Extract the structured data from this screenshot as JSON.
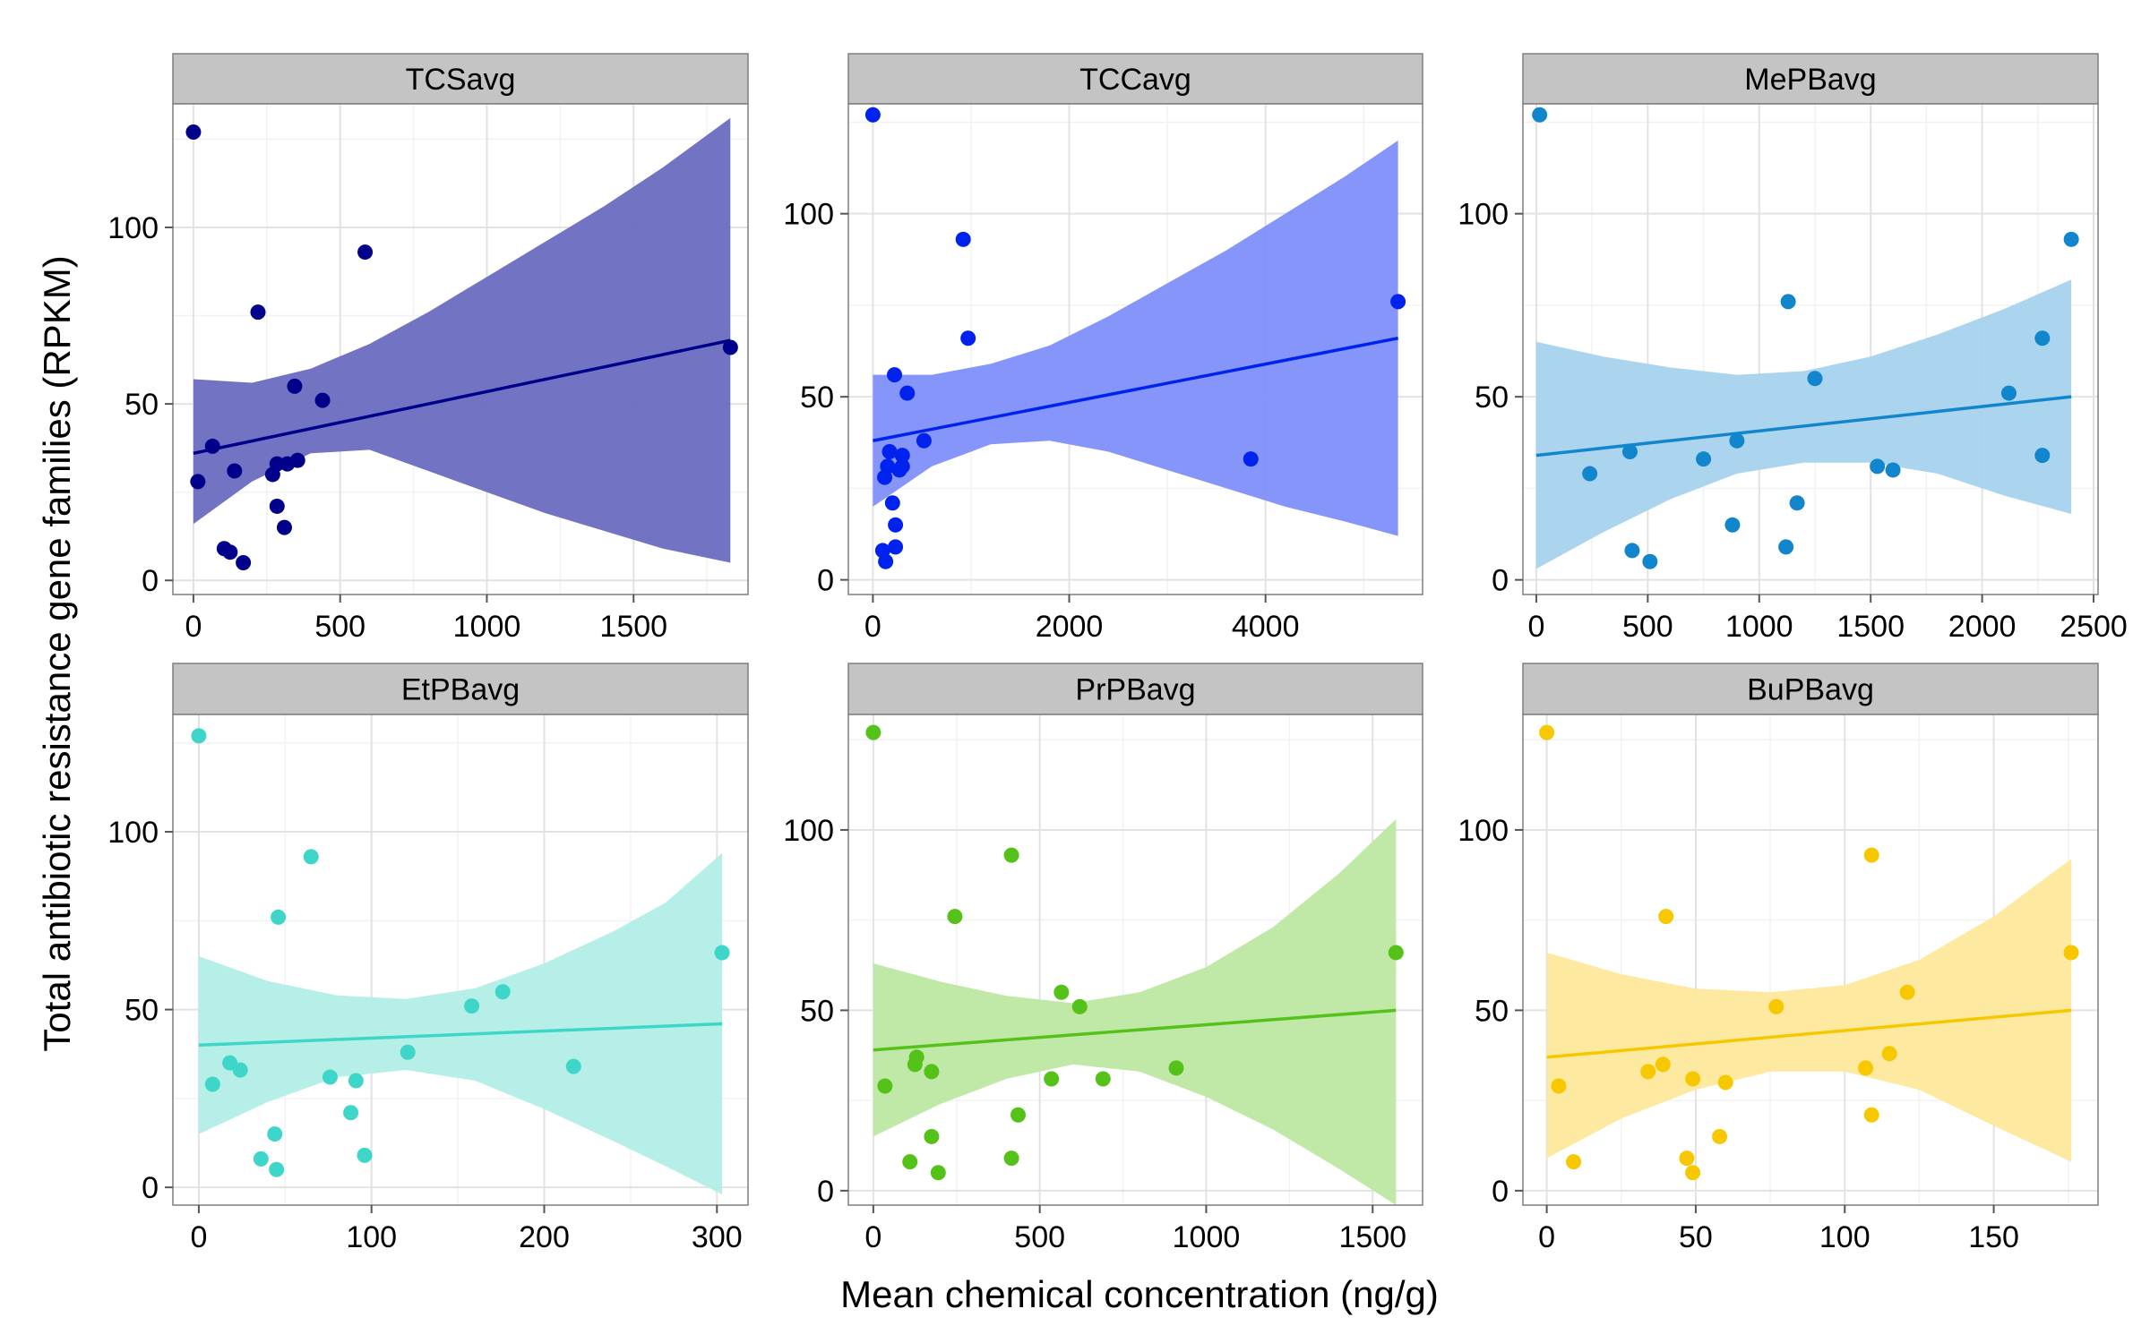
{
  "figure": {
    "ylabel": "Total antibiotic resistance gene families (RPKM)",
    "xlabel": "Mean chemical concentration (ng/g)"
  },
  "chart_data": [
    {
      "type": "scatter",
      "title": "TCSavg",
      "color": "#00008B",
      "band_color": "#6C6BC0",
      "xlim": [
        -70,
        1890
      ],
      "ylim": [
        -4,
        135
      ],
      "xticks": [
        0,
        500,
        1000,
        1500
      ],
      "yticks": [
        0,
        50,
        100
      ],
      "points": [
        [
          0,
          127
        ],
        [
          15,
          28
        ],
        [
          65,
          38
        ],
        [
          105,
          9
        ],
        [
          125,
          8
        ],
        [
          140,
          31
        ],
        [
          170,
          5
        ],
        [
          220,
          76
        ],
        [
          270,
          30
        ],
        [
          285,
          21
        ],
        [
          285,
          33
        ],
        [
          310,
          15
        ],
        [
          320,
          33
        ],
        [
          345,
          55
        ],
        [
          355,
          34
        ],
        [
          440,
          51
        ],
        [
          585,
          93
        ],
        [
          1830,
          66
        ]
      ],
      "fit": {
        "x0": 0,
        "y0": 36,
        "x1": 1830,
        "y1": 68
      },
      "band": [
        [
          0,
          16,
          57
        ],
        [
          200,
          28,
          56
        ],
        [
          400,
          36,
          60
        ],
        [
          600,
          37,
          67
        ],
        [
          800,
          31,
          76
        ],
        [
          1000,
          25,
          86
        ],
        [
          1200,
          19,
          96
        ],
        [
          1400,
          14,
          106
        ],
        [
          1600,
          9,
          117
        ],
        [
          1830,
          5,
          131
        ]
      ]
    },
    {
      "type": "scatter",
      "title": "TCCavg",
      "color": "#0022EE",
      "band_color": "#7F8FFA",
      "xlim": [
        -250,
        5600
      ],
      "ylim": [
        -4,
        130
      ],
      "xticks": [
        0,
        2000,
        4000
      ],
      "yticks": [
        0,
        50,
        100
      ],
      "points": [
        [
          0,
          127
        ],
        [
          100,
          8
        ],
        [
          120,
          28
        ],
        [
          130,
          5
        ],
        [
          150,
          31
        ],
        [
          170,
          35
        ],
        [
          200,
          21
        ],
        [
          220,
          56
        ],
        [
          230,
          9
        ],
        [
          230,
          15
        ],
        [
          270,
          30
        ],
        [
          300,
          34
        ],
        [
          300,
          31
        ],
        [
          350,
          51
        ],
        [
          520,
          38
        ],
        [
          920,
          93
        ],
        [
          970,
          66
        ],
        [
          3850,
          33
        ],
        [
          5350,
          76
        ]
      ],
      "fit": {
        "x0": 0,
        "y0": 38,
        "x1": 5350,
        "y1": 66
      },
      "band": [
        [
          0,
          20,
          56
        ],
        [
          600,
          31,
          56
        ],
        [
          1200,
          37,
          59
        ],
        [
          1800,
          38,
          64
        ],
        [
          2400,
          35,
          72
        ],
        [
          3000,
          30,
          81
        ],
        [
          3600,
          25,
          90
        ],
        [
          4200,
          20,
          100
        ],
        [
          4800,
          16,
          110
        ],
        [
          5350,
          12,
          120
        ]
      ]
    },
    {
      "type": "scatter",
      "title": "MePBavg",
      "color": "#1286CC",
      "band_color": "#A6D3EE",
      "xlim": [
        -60,
        2520
      ],
      "ylim": [
        -4,
        130
      ],
      "xticks": [
        0,
        500,
        1000,
        1500,
        2000,
        2500
      ],
      "yticks": [
        0,
        50,
        100
      ],
      "points": [
        [
          15,
          127
        ],
        [
          240,
          29
        ],
        [
          420,
          35
        ],
        [
          430,
          8
        ],
        [
          510,
          5
        ],
        [
          750,
          33
        ],
        [
          880,
          15
        ],
        [
          900,
          38
        ],
        [
          1120,
          9
        ],
        [
          1130,
          76
        ],
        [
          1170,
          21
        ],
        [
          1250,
          55
        ],
        [
          1530,
          31
        ],
        [
          1600,
          30
        ],
        [
          2120,
          51
        ],
        [
          2270,
          66
        ],
        [
          2270,
          34
        ],
        [
          2400,
          93
        ]
      ],
      "fit": {
        "x0": 0,
        "y0": 34,
        "x1": 2400,
        "y1": 50
      },
      "band": [
        [
          0,
          3,
          65
        ],
        [
          300,
          13,
          61
        ],
        [
          600,
          22,
          58
        ],
        [
          900,
          29,
          56
        ],
        [
          1200,
          32,
          57
        ],
        [
          1500,
          32,
          61
        ],
        [
          1800,
          29,
          67
        ],
        [
          2100,
          23,
          74
        ],
        [
          2400,
          18,
          82
        ]
      ]
    },
    {
      "type": "scatter",
      "title": "EtPBavg",
      "color": "#3ED6C8",
      "band_color": "#B2EEE6",
      "xlim": [
        -15,
        318
      ],
      "ylim": [
        -5,
        133
      ],
      "xticks": [
        0,
        100,
        200,
        300
      ],
      "yticks": [
        0,
        50,
        100
      ],
      "points": [
        [
          0,
          127
        ],
        [
          8,
          29
        ],
        [
          18,
          35
        ],
        [
          24,
          33
        ],
        [
          36,
          8
        ],
        [
          44,
          15
        ],
        [
          45,
          5
        ],
        [
          46,
          76
        ],
        [
          65,
          93
        ],
        [
          76,
          31
        ],
        [
          88,
          21
        ],
        [
          91,
          30
        ],
        [
          96,
          9
        ],
        [
          121,
          38
        ],
        [
          158,
          51
        ],
        [
          176,
          55
        ],
        [
          217,
          34
        ],
        [
          303,
          66
        ]
      ],
      "fit": {
        "x0": 0,
        "y0": 40,
        "x1": 303,
        "y1": 46
      },
      "band": [
        [
          0,
          15,
          65
        ],
        [
          40,
          24,
          58
        ],
        [
          80,
          31,
          54
        ],
        [
          120,
          33,
          53
        ],
        [
          160,
          30,
          56
        ],
        [
          200,
          22,
          63
        ],
        [
          240,
          13,
          72
        ],
        [
          270,
          6,
          80
        ],
        [
          303,
          -2,
          94
        ]
      ]
    },
    {
      "type": "scatter",
      "title": "PrPBavg",
      "color": "#55C21A",
      "band_color": "#BDE8A2",
      "xlim": [
        -75,
        1650
      ],
      "ylim": [
        -4,
        132
      ],
      "xticks": [
        0,
        500,
        1000,
        1500
      ],
      "yticks": [
        0,
        50,
        100
      ],
      "points": [
        [
          0,
          127
        ],
        [
          35,
          29
        ],
        [
          110,
          8
        ],
        [
          125,
          35
        ],
        [
          130,
          37
        ],
        [
          175,
          33
        ],
        [
          175,
          15
        ],
        [
          195,
          5
        ],
        [
          245,
          76
        ],
        [
          415,
          93
        ],
        [
          415,
          9
        ],
        [
          435,
          21
        ],
        [
          535,
          31
        ],
        [
          565,
          55
        ],
        [
          620,
          51
        ],
        [
          690,
          31
        ],
        [
          910,
          34
        ],
        [
          1570,
          66
        ]
      ],
      "fit": {
        "x0": 0,
        "y0": 39,
        "x1": 1570,
        "y1": 50
      },
      "band": [
        [
          0,
          15,
          63
        ],
        [
          200,
          24,
          58
        ],
        [
          400,
          31,
          54
        ],
        [
          600,
          35,
          52
        ],
        [
          800,
          33,
          55
        ],
        [
          1000,
          26,
          62
        ],
        [
          1200,
          17,
          73
        ],
        [
          1400,
          6,
          88
        ],
        [
          1570,
          -4,
          103
        ]
      ]
    },
    {
      "type": "scatter",
      "title": "BuPBavg",
      "color": "#F7C800",
      "band_color": "#FDE89A",
      "xlim": [
        -8,
        185
      ],
      "ylim": [
        -4,
        132
      ],
      "xticks": [
        0,
        50,
        100,
        150
      ],
      "yticks": [
        0,
        50,
        100
      ],
      "points": [
        [
          0,
          127
        ],
        [
          4,
          29
        ],
        [
          9,
          8
        ],
        [
          34,
          33
        ],
        [
          39,
          35
        ],
        [
          40,
          76
        ],
        [
          47,
          9
        ],
        [
          49,
          5
        ],
        [
          49,
          31
        ],
        [
          58,
          15
        ],
        [
          60,
          30
        ],
        [
          77,
          51
        ],
        [
          107,
          34
        ],
        [
          109,
          21
        ],
        [
          109,
          93
        ],
        [
          115,
          38
        ],
        [
          121,
          55
        ],
        [
          176,
          66
        ]
      ],
      "fit": {
        "x0": 0,
        "y0": 37,
        "x1": 176,
        "y1": 50
      },
      "band": [
        [
          0,
          9,
          66
        ],
        [
          25,
          20,
          60
        ],
        [
          50,
          28,
          56
        ],
        [
          75,
          33,
          55
        ],
        [
          100,
          33,
          57
        ],
        [
          125,
          28,
          64
        ],
        [
          150,
          18,
          76
        ],
        [
          176,
          8,
          92
        ]
      ]
    }
  ]
}
